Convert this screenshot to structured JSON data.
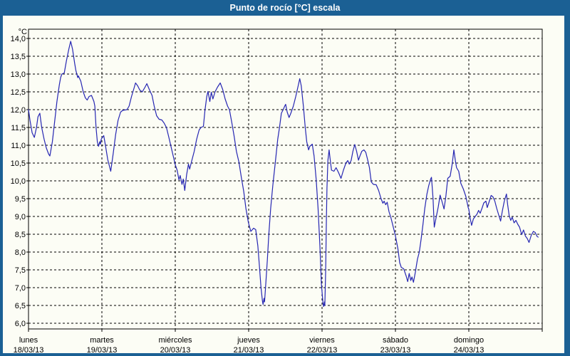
{
  "window": {
    "title": "Punto de rocío [°C] escala"
  },
  "colors": {
    "frame": "#1b6094",
    "title_text": "#ffffff",
    "surface": "#fcfdf5",
    "grid": "#000000",
    "axis": "#000000",
    "text": "#000000",
    "line": "#2626b2"
  },
  "chart_data": {
    "type": "line",
    "title": "Punto de rocío [°C] escala",
    "y_unit": "°C",
    "ylabel": "Punto de rocío [°C]",
    "ylim": [
      6.0,
      14.0
    ],
    "y_tick_step": 0.5,
    "decimal_separator": ",",
    "grid": true,
    "x_unit": "hours from Monday 00:00",
    "xlim_hours": [
      0,
      168
    ],
    "days": [
      {
        "name": "lunes",
        "date": "18/03/13"
      },
      {
        "name": "martes",
        "date": "19/03/13"
      },
      {
        "name": "miércoles",
        "date": "20/03/13"
      },
      {
        "name": "jueves",
        "date": "21/03/13"
      },
      {
        "name": "viernes",
        "date": "22/03/13"
      },
      {
        "name": "sábado",
        "date": "23/03/13"
      },
      {
        "name": "domingo",
        "date": "24/03/13"
      }
    ],
    "series": [
      {
        "name": "Punto de rocío",
        "points": [
          [
            0.0,
            12.0
          ],
          [
            0.5,
            11.7
          ],
          [
            1.2,
            11.35
          ],
          [
            1.9,
            11.22
          ],
          [
            2.6,
            11.5
          ],
          [
            3.1,
            11.8
          ],
          [
            3.7,
            11.9
          ],
          [
            4.3,
            11.5
          ],
          [
            5.1,
            11.17
          ],
          [
            5.8,
            10.93
          ],
          [
            6.6,
            10.75
          ],
          [
            7.0,
            10.7
          ],
          [
            7.8,
            11.1
          ],
          [
            8.6,
            11.7
          ],
          [
            9.3,
            12.23
          ],
          [
            10.1,
            12.7
          ],
          [
            10.5,
            12.9
          ],
          [
            10.9,
            13.0
          ],
          [
            11.7,
            13.03
          ],
          [
            12.4,
            13.37
          ],
          [
            13.2,
            13.7
          ],
          [
            13.8,
            13.92
          ],
          [
            14.4,
            13.7
          ],
          [
            15.1,
            13.3
          ],
          [
            15.5,
            13.1
          ],
          [
            16.1,
            12.9
          ],
          [
            16.3,
            12.95
          ],
          [
            17.1,
            12.8
          ],
          [
            17.9,
            12.5
          ],
          [
            18.6,
            12.33
          ],
          [
            19.2,
            12.27
          ],
          [
            19.8,
            12.37
          ],
          [
            20.6,
            12.4
          ],
          [
            21.4,
            12.23
          ],
          [
            21.7,
            12.1
          ],
          [
            22.1,
            11.5
          ],
          [
            22.5,
            11.1
          ],
          [
            22.9,
            10.97
          ],
          [
            23.3,
            11.1
          ],
          [
            23.5,
            11.03
          ],
          [
            23.8,
            11.17
          ],
          [
            24.0,
            11.2
          ],
          [
            24.6,
            11.27
          ],
          [
            25.2,
            10.97
          ],
          [
            25.9,
            10.6
          ],
          [
            26.9,
            10.27
          ],
          [
            27.7,
            10.77
          ],
          [
            28.5,
            11.3
          ],
          [
            29.3,
            11.7
          ],
          [
            30.1,
            11.93
          ],
          [
            30.8,
            11.98
          ],
          [
            32.2,
            12.0
          ],
          [
            32.9,
            12.1
          ],
          [
            33.7,
            12.37
          ],
          [
            34.6,
            12.63
          ],
          [
            35.0,
            12.75
          ],
          [
            35.7,
            12.67
          ],
          [
            36.4,
            12.55
          ],
          [
            37.2,
            12.5
          ],
          [
            38.1,
            12.63
          ],
          [
            38.7,
            12.73
          ],
          [
            39.5,
            12.57
          ],
          [
            40.4,
            12.4
          ],
          [
            41.1,
            12.1
          ],
          [
            41.9,
            11.83
          ],
          [
            42.7,
            11.73
          ],
          [
            43.6,
            11.71
          ],
          [
            44.3,
            11.63
          ],
          [
            45.1,
            11.5
          ],
          [
            45.9,
            11.22
          ],
          [
            46.7,
            10.93
          ],
          [
            47.5,
            10.63
          ],
          [
            48.0,
            10.45
          ],
          [
            48.6,
            10.3
          ],
          [
            49.2,
            10.03
          ],
          [
            49.6,
            10.15
          ],
          [
            50.2,
            9.9
          ],
          [
            50.6,
            10.05
          ],
          [
            51.1,
            9.73
          ],
          [
            51.7,
            10.17
          ],
          [
            52.3,
            10.47
          ],
          [
            52.7,
            10.33
          ],
          [
            53.4,
            10.57
          ],
          [
            54.2,
            10.83
          ],
          [
            55.0,
            11.17
          ],
          [
            55.8,
            11.43
          ],
          [
            56.4,
            11.5
          ],
          [
            57.2,
            11.53
          ],
          [
            57.7,
            11.97
          ],
          [
            58.3,
            12.37
          ],
          [
            58.7,
            12.51
          ],
          [
            59.3,
            12.23
          ],
          [
            59.8,
            12.49
          ],
          [
            60.3,
            12.3
          ],
          [
            61.0,
            12.5
          ],
          [
            61.8,
            12.63
          ],
          [
            62.7,
            12.75
          ],
          [
            63.5,
            12.57
          ],
          [
            64.3,
            12.3
          ],
          [
            65.1,
            12.1
          ],
          [
            65.7,
            12.0
          ],
          [
            66.5,
            11.63
          ],
          [
            67.3,
            11.23
          ],
          [
            68.0,
            10.83
          ],
          [
            68.8,
            10.53
          ],
          [
            69.6,
            10.1
          ],
          [
            70.4,
            9.7
          ],
          [
            71.1,
            9.23
          ],
          [
            71.9,
            8.83
          ],
          [
            72.7,
            8.58
          ],
          [
            73.2,
            8.63
          ],
          [
            73.6,
            8.67
          ],
          [
            74.3,
            8.63
          ],
          [
            75.0,
            8.17
          ],
          [
            75.5,
            7.63
          ],
          [
            76.0,
            7.03
          ],
          [
            76.5,
            6.63
          ],
          [
            76.7,
            6.53
          ],
          [
            77.0,
            6.7
          ],
          [
            77.2,
            6.6
          ],
          [
            77.6,
            7.1
          ],
          [
            78.1,
            7.77
          ],
          [
            78.6,
            8.5
          ],
          [
            79.2,
            9.23
          ],
          [
            79.9,
            9.87
          ],
          [
            80.7,
            10.5
          ],
          [
            81.5,
            11.17
          ],
          [
            82.1,
            11.5
          ],
          [
            82.7,
            11.9
          ],
          [
            83.3,
            12.0
          ],
          [
            83.8,
            12.1
          ],
          [
            84.1,
            12.15
          ],
          [
            84.6,
            11.93
          ],
          [
            85.2,
            11.78
          ],
          [
            85.8,
            11.9
          ],
          [
            86.6,
            12.1
          ],
          [
            87.4,
            12.37
          ],
          [
            88.2,
            12.67
          ],
          [
            88.7,
            12.87
          ],
          [
            89.2,
            12.67
          ],
          [
            89.9,
            12.1
          ],
          [
            90.5,
            11.5
          ],
          [
            91.0,
            11.1
          ],
          [
            91.6,
            10.87
          ],
          [
            92.0,
            10.97
          ],
          [
            92.8,
            11.03
          ],
          [
            93.4,
            10.7
          ],
          [
            94.1,
            10.03
          ],
          [
            94.7,
            9.23
          ],
          [
            95.3,
            8.17
          ],
          [
            95.8,
            7.1
          ],
          [
            96.3,
            6.57
          ],
          [
            96.5,
            6.47
          ],
          [
            96.8,
            6.6
          ],
          [
            96.9,
            6.5
          ],
          [
            97.2,
            7.5
          ],
          [
            97.4,
            8.8
          ],
          [
            97.6,
            9.8
          ],
          [
            97.9,
            10.57
          ],
          [
            98.3,
            10.87
          ],
          [
            98.8,
            10.5
          ],
          [
            99.1,
            10.3
          ],
          [
            99.9,
            10.27
          ],
          [
            100.6,
            10.37
          ],
          [
            101.4,
            10.23
          ],
          [
            102.2,
            10.07
          ],
          [
            103.0,
            10.3
          ],
          [
            103.8,
            10.5
          ],
          [
            104.4,
            10.57
          ],
          [
            104.9,
            10.47
          ],
          [
            105.5,
            10.57
          ],
          [
            106.1,
            10.83
          ],
          [
            106.7,
            11.02
          ],
          [
            107.3,
            10.83
          ],
          [
            107.9,
            10.58
          ],
          [
            108.4,
            10.7
          ],
          [
            109.0,
            10.83
          ],
          [
            109.7,
            10.87
          ],
          [
            110.3,
            10.8
          ],
          [
            110.9,
            10.6
          ],
          [
            111.5,
            10.37
          ],
          [
            112.1,
            9.97
          ],
          [
            112.8,
            9.9
          ],
          [
            113.7,
            9.89
          ],
          [
            114.5,
            9.73
          ],
          [
            115.3,
            9.5
          ],
          [
            115.9,
            9.37
          ],
          [
            116.3,
            9.43
          ],
          [
            116.8,
            9.33
          ],
          [
            117.3,
            9.4
          ],
          [
            117.9,
            9.13
          ],
          [
            118.5,
            8.97
          ],
          [
            119.1,
            8.77
          ],
          [
            119.8,
            8.53
          ],
          [
            120.0,
            8.45
          ],
          [
            120.8,
            8.1
          ],
          [
            121.4,
            7.7
          ],
          [
            121.9,
            7.57
          ],
          [
            122.7,
            7.53
          ],
          [
            123.5,
            7.33
          ],
          [
            124.0,
            7.17
          ],
          [
            124.5,
            7.4
          ],
          [
            125.0,
            7.2
          ],
          [
            125.4,
            7.3
          ],
          [
            125.9,
            7.15
          ],
          [
            126.5,
            7.43
          ],
          [
            127.2,
            7.8
          ],
          [
            127.8,
            8.0
          ],
          [
            128.4,
            8.37
          ],
          [
            129.0,
            8.77
          ],
          [
            129.6,
            9.23
          ],
          [
            130.3,
            9.63
          ],
          [
            130.9,
            9.87
          ],
          [
            131.5,
            10.05
          ],
          [
            131.8,
            10.1
          ],
          [
            132.3,
            9.5
          ],
          [
            132.7,
            8.7
          ],
          [
            133.3,
            8.97
          ],
          [
            134.0,
            9.27
          ],
          [
            134.6,
            9.6
          ],
          [
            135.2,
            9.43
          ],
          [
            135.9,
            9.21
          ],
          [
            136.5,
            9.57
          ],
          [
            137.1,
            10.07
          ],
          [
            137.9,
            10.13
          ],
          [
            138.6,
            10.49
          ],
          [
            139.1,
            10.87
          ],
          [
            139.6,
            10.57
          ],
          [
            140.0,
            10.37
          ],
          [
            140.7,
            10.27
          ],
          [
            141.4,
            9.93
          ],
          [
            142.2,
            9.77
          ],
          [
            143.0,
            9.57
          ],
          [
            143.8,
            9.25
          ],
          [
            144.0,
            9.2
          ],
          [
            144.4,
            8.97
          ],
          [
            144.9,
            8.75
          ],
          [
            145.5,
            8.93
          ],
          [
            146.1,
            9.0
          ],
          [
            146.7,
            9.07
          ],
          [
            147.2,
            9.17
          ],
          [
            147.7,
            9.09
          ],
          [
            148.3,
            9.23
          ],
          [
            148.9,
            9.38
          ],
          [
            149.6,
            9.43
          ],
          [
            150.0,
            9.25
          ],
          [
            150.7,
            9.43
          ],
          [
            151.3,
            9.59
          ],
          [
            151.9,
            9.55
          ],
          [
            152.5,
            9.43
          ],
          [
            153.1,
            9.23
          ],
          [
            153.8,
            9.03
          ],
          [
            154.4,
            8.87
          ],
          [
            155.0,
            9.17
          ],
          [
            155.6,
            9.43
          ],
          [
            156.3,
            9.63
          ],
          [
            156.7,
            9.33
          ],
          [
            157.2,
            9.03
          ],
          [
            157.7,
            8.89
          ],
          [
            158.2,
            8.98
          ],
          [
            158.8,
            8.82
          ],
          [
            159.4,
            8.89
          ],
          [
            160.0,
            8.78
          ],
          [
            160.6,
            8.7
          ],
          [
            161.3,
            8.49
          ],
          [
            161.9,
            8.62
          ],
          [
            162.5,
            8.45
          ],
          [
            163.1,
            8.38
          ],
          [
            163.7,
            8.27
          ],
          [
            164.4,
            8.47
          ],
          [
            165.1,
            8.58
          ],
          [
            165.7,
            8.55
          ],
          [
            166.4,
            8.43
          ],
          [
            166.7,
            8.42
          ]
        ]
      }
    ]
  }
}
